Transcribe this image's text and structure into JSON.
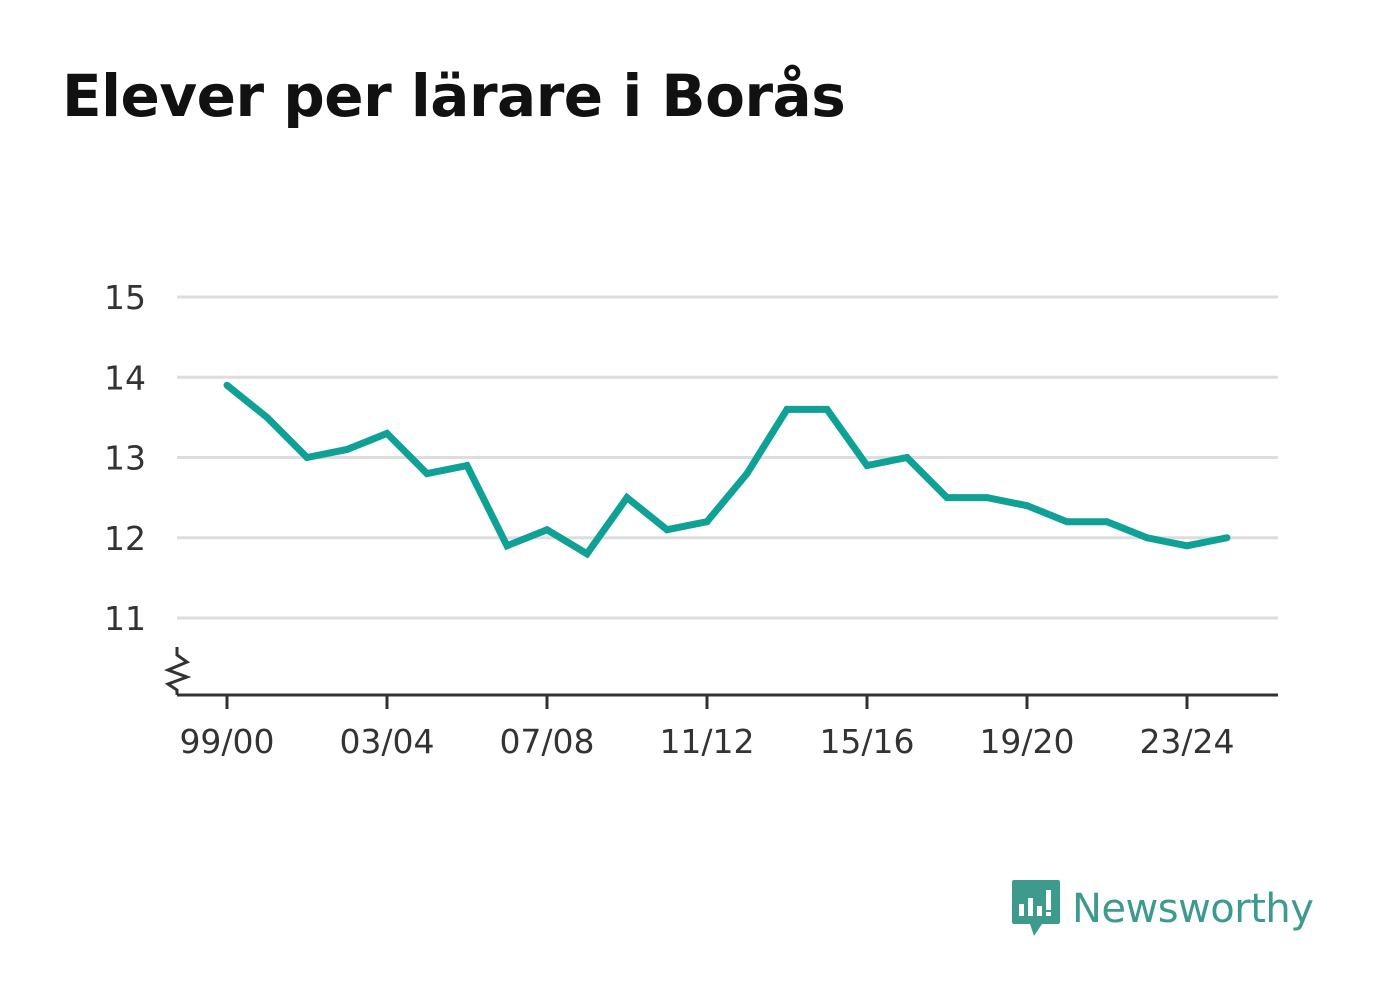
{
  "title": "Elever per lärare i Borås",
  "brand": {
    "name": "Newsworthy",
    "color": "#3d9b8e",
    "icon": "newsworthy-logo-icon"
  },
  "chart_data": {
    "type": "line",
    "title": "Elever per lärare i Borås",
    "xlabel": "",
    "ylabel": "",
    "ylim": [
      10,
      15
    ],
    "y_ticks": [
      11,
      12,
      13,
      14,
      15
    ],
    "y_tick_labels": [
      "11",
      "12",
      "13",
      "14",
      "15"
    ],
    "x_tick_labels": [
      "99/00",
      "03/04",
      "07/08",
      "11/12",
      "15/16",
      "19/20",
      "23/24"
    ],
    "x_tick_indices": [
      0,
      4,
      8,
      12,
      16,
      20,
      24
    ],
    "categories": [
      "99/00",
      "00/01",
      "01/02",
      "02/03",
      "03/04",
      "04/05",
      "05/06",
      "06/07",
      "07/08",
      "08/09",
      "09/10",
      "10/11",
      "11/12",
      "12/13",
      "13/14",
      "14/15",
      "15/16",
      "16/17",
      "17/18",
      "18/19",
      "19/20",
      "20/21",
      "21/22",
      "22/23",
      "23/24",
      "24/25"
    ],
    "series": [
      {
        "values": [
          13.9,
          13.5,
          13.0,
          13.1,
          13.3,
          12.8,
          12.9,
          11.9,
          12.1,
          11.8,
          12.5,
          12.1,
          12.2,
          12.8,
          13.6,
          13.6,
          12.9,
          13.0,
          12.5,
          12.5,
          12.4,
          12.2,
          12.2,
          12.0,
          11.9,
          12.0
        ]
      }
    ],
    "line_color": "#0fa196",
    "grid": true,
    "y_axis_break": true
  }
}
